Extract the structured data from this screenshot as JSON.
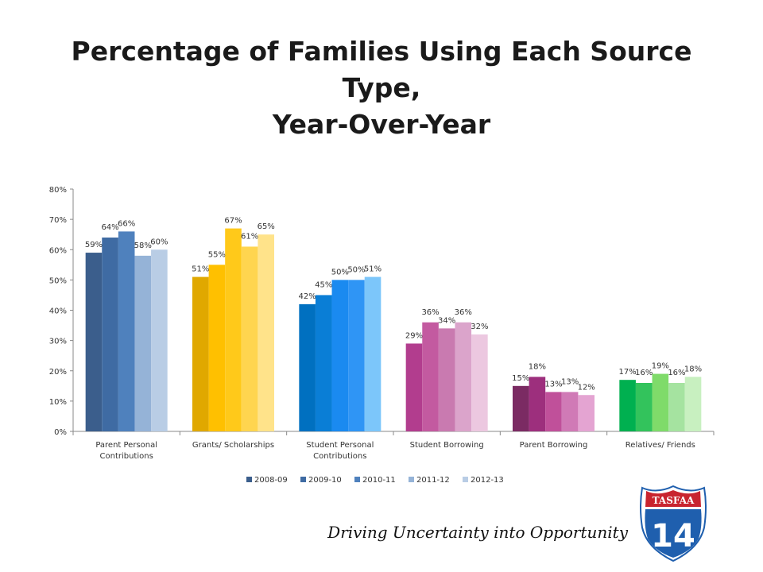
{
  "slide": {
    "title_line1": "Percentage of Families Using Each Source Type,",
    "title_line2": "Year-Over-Year",
    "tagline": "Driving Uncertainty into Opportunity"
  },
  "logo": {
    "top_text": "TASFAA",
    "number": "14",
    "colors": {
      "shield": "#1f5fae",
      "top": "#c8242f",
      "border": "#ffffff"
    }
  },
  "chart_data": {
    "type": "bar",
    "title": "",
    "xlabel": "",
    "ylabel": "",
    "ylim": [
      0,
      80
    ],
    "yticks": [
      "0%",
      "10%",
      "20%",
      "30%",
      "40%",
      "50%",
      "60%",
      "70%",
      "80%"
    ],
    "categories": [
      [
        "Parent Personal",
        "Contributions"
      ],
      [
        "Grants/ Scholarships"
      ],
      [
        "Student Personal",
        "Contributions"
      ],
      [
        "Student Borrowing"
      ],
      [
        "Parent Borrowing"
      ],
      [
        "Relatives/ Friends"
      ]
    ],
    "series": [
      {
        "name": "2008-09",
        "values": [
          59,
          51,
          42,
          29,
          15,
          17
        ]
      },
      {
        "name": "2009-10",
        "values": [
          64,
          55,
          45,
          36,
          18,
          16
        ]
      },
      {
        "name": "2010-11",
        "values": [
          66,
          67,
          50,
          34,
          13,
          19
        ]
      },
      {
        "name": "2011-12",
        "values": [
          58,
          61,
          50,
          36,
          13,
          16
        ]
      },
      {
        "name": "2012-13",
        "values": [
          60,
          65,
          51,
          32,
          12,
          18
        ]
      }
    ],
    "value_suffix": "%",
    "legend_position": "bottom",
    "legend_colors": [
      "#3b5e8c",
      "#3f6ba3",
      "#4f81bd",
      "#95b3d7",
      "#b9cde5"
    ],
    "group_colors": [
      [
        "#3b5e8c",
        "#3f6ba3",
        "#4f81bd",
        "#95b3d7",
        "#b9cde5"
      ],
      [
        "#e0a800",
        "#ffc000",
        "#ffc91a",
        "#ffd54f",
        "#ffe38a"
      ],
      [
        "#0070c0",
        "#0a7ed6",
        "#1a8af0",
        "#2f95f5",
        "#7cc6fa"
      ],
      [
        "#b23d8e",
        "#c35aa0",
        "#c97ab0",
        "#dba4cb",
        "#ecc8e0"
      ],
      [
        "#7b2b63",
        "#9d2f7d",
        "#c0509a",
        "#d07ab6",
        "#e4a4d2"
      ],
      [
        "#00b050",
        "#33c35c",
        "#7fdb6a",
        "#a5e3a0",
        "#c8f0c0"
      ]
    ],
    "grid": false
  }
}
